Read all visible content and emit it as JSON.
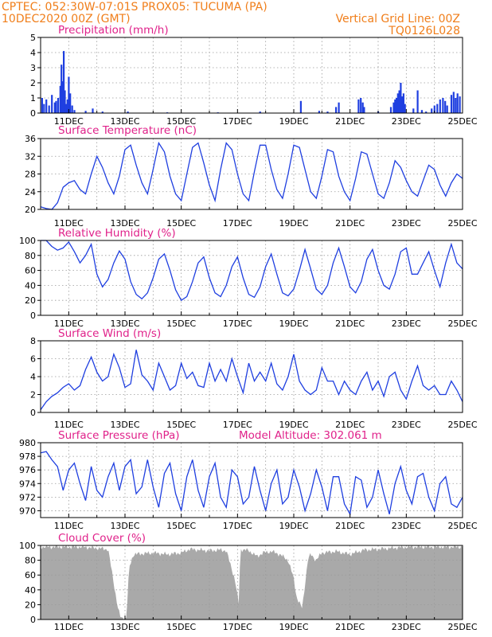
{
  "header": {
    "line1_left": "CPTEC:   052:30W-07:01S   PROX05: TUCUMA (PA)",
    "line2_left": "10DEC2020 00Z (GMT)",
    "line2_right": "Vertical Grid Line: 00Z",
    "line3_right": "TQ0126L028"
  },
  "colors": {
    "header": "#f07e1a",
    "title": "#e0218a",
    "series": "#1f3fe0",
    "cloud": "#a9a9a9",
    "grid": "#9a9a9a"
  },
  "x_ticks": [
    "11DEC",
    "13DEC",
    "15DEC",
    "17DEC",
    "19DEC",
    "21DEC",
    "23DEC",
    "25DEC"
  ],
  "chart_data": [
    {
      "id": "precip",
      "type": "bar",
      "title": "Precipitation (mm/h)",
      "ylim": [
        0,
        5
      ],
      "yticks": [
        0,
        1,
        2,
        3,
        4,
        5
      ],
      "x_day_start": 10,
      "x_day_end": 25,
      "grid": true,
      "values": [
        [
          10.05,
          1.0
        ],
        [
          10.12,
          0.6
        ],
        [
          10.2,
          0.9
        ],
        [
          10.3,
          0.5
        ],
        [
          10.4,
          1.2
        ],
        [
          10.5,
          0.7
        ],
        [
          10.55,
          0.8
        ],
        [
          10.62,
          1.0
        ],
        [
          10.7,
          1.8
        ],
        [
          10.74,
          3.2
        ],
        [
          10.78,
          2.1
        ],
        [
          10.82,
          4.1
        ],
        [
          10.86,
          1.5
        ],
        [
          10.9,
          0.6
        ],
        [
          10.95,
          0.9
        ],
        [
          11.0,
          2.4
        ],
        [
          11.05,
          1.3
        ],
        [
          11.12,
          0.5
        ],
        [
          11.2,
          0.2
        ],
        [
          11.6,
          0.15
        ],
        [
          11.85,
          0.3
        ],
        [
          12.2,
          0.1
        ],
        [
          13.1,
          0.1
        ],
        [
          14.5,
          0.05
        ],
        [
          16.3,
          0.05
        ],
        [
          17.8,
          0.1
        ],
        [
          19.25,
          0.8
        ],
        [
          19.9,
          0.15
        ],
        [
          20.2,
          0.1
        ],
        [
          20.5,
          0.4
        ],
        [
          20.6,
          0.7
        ],
        [
          21.3,
          0.9
        ],
        [
          21.38,
          1.0
        ],
        [
          21.45,
          0.7
        ],
        [
          21.5,
          0.4
        ],
        [
          22.0,
          0.1
        ],
        [
          22.45,
          0.4
        ],
        [
          22.55,
          0.7
        ],
        [
          22.6,
          0.9
        ],
        [
          22.65,
          1.0
        ],
        [
          22.7,
          1.3
        ],
        [
          22.75,
          1.5
        ],
        [
          22.8,
          2.0
        ],
        [
          22.85,
          1.1
        ],
        [
          22.9,
          1.3
        ],
        [
          22.95,
          0.6
        ],
        [
          23.25,
          0.3
        ],
        [
          23.4,
          1.5
        ],
        [
          23.55,
          0.2
        ],
        [
          23.7,
          0.1
        ],
        [
          23.9,
          0.3
        ],
        [
          24.0,
          0.5
        ],
        [
          24.1,
          0.6
        ],
        [
          24.2,
          0.9
        ],
        [
          24.3,
          1.0
        ],
        [
          24.38,
          0.8
        ],
        [
          24.45,
          0.5
        ],
        [
          24.6,
          1.2
        ],
        [
          24.68,
          1.4
        ],
        [
          24.75,
          1.0
        ],
        [
          24.82,
          1.3
        ],
        [
          24.9,
          1.1
        ]
      ]
    },
    {
      "id": "temp",
      "type": "line",
      "title": "Surface Temperature (nC)",
      "ylim": [
        20,
        36
      ],
      "yticks": [
        20,
        24,
        28,
        32,
        36
      ],
      "x_day_start": 10,
      "x_day_end": 25,
      "grid": true,
      "x": [
        10.0,
        10.2,
        10.4,
        10.6,
        10.8,
        11.0,
        11.2,
        11.4,
        11.6,
        11.8,
        12.0,
        12.2,
        12.4,
        12.6,
        12.8,
        13.0,
        13.2,
        13.4,
        13.6,
        13.8,
        14.0,
        14.2,
        14.4,
        14.6,
        14.8,
        15.0,
        15.2,
        15.4,
        15.6,
        15.8,
        16.0,
        16.2,
        16.4,
        16.6,
        16.8,
        17.0,
        17.2,
        17.4,
        17.6,
        17.8,
        18.0,
        18.2,
        18.4,
        18.6,
        18.8,
        19.0,
        19.2,
        19.4,
        19.6,
        19.8,
        20.0,
        20.2,
        20.4,
        20.6,
        20.8,
        21.0,
        21.2,
        21.4,
        21.6,
        21.8,
        22.0,
        22.2,
        22.4,
        22.6,
        22.8,
        23.0,
        23.2,
        23.4,
        23.6,
        23.8,
        24.0,
        24.2,
        24.4,
        24.6,
        24.8,
        25.0
      ],
      "values": [
        20.6,
        20.2,
        20.0,
        21.5,
        25.0,
        26.0,
        26.5,
        24.5,
        23.5,
        28.0,
        32.0,
        29.5,
        26.0,
        23.5,
        27.5,
        33.5,
        34.5,
        30.0,
        26.0,
        23.5,
        29.0,
        35.0,
        33.0,
        27.5,
        23.5,
        22.0,
        28.0,
        34.0,
        35.0,
        30.5,
        25.5,
        22.0,
        29.0,
        35.0,
        33.5,
        28.0,
        23.5,
        22.0,
        28.5,
        34.5,
        34.5,
        29.0,
        24.5,
        22.5,
        28.0,
        34.5,
        34.0,
        29.0,
        24.0,
        22.5,
        27.5,
        33.5,
        33.0,
        27.5,
        24.0,
        22.0,
        27.0,
        33.0,
        32.5,
        28.0,
        23.5,
        22.5,
        26.0,
        31.0,
        29.5,
        26.5,
        24.0,
        23.0,
        26.5,
        30.0,
        29.0,
        25.5,
        23.0,
        26.0,
        28.0,
        27.0
      ]
    },
    {
      "id": "rh",
      "type": "line",
      "title": "Relative Humidity (%)",
      "ylim": [
        0,
        100
      ],
      "yticks": [
        0,
        20,
        40,
        60,
        80,
        100
      ],
      "x_day_start": 10,
      "x_day_end": 25,
      "grid": true,
      "x": [
        10.0,
        10.2,
        10.4,
        10.6,
        10.8,
        11.0,
        11.2,
        11.4,
        11.6,
        11.8,
        12.0,
        12.2,
        12.4,
        12.6,
        12.8,
        13.0,
        13.2,
        13.4,
        13.6,
        13.8,
        14.0,
        14.2,
        14.4,
        14.6,
        14.8,
        15.0,
        15.2,
        15.4,
        15.6,
        15.8,
        16.0,
        16.2,
        16.4,
        16.6,
        16.8,
        17.0,
        17.2,
        17.4,
        17.6,
        17.8,
        18.0,
        18.2,
        18.4,
        18.6,
        18.8,
        19.0,
        19.2,
        19.4,
        19.6,
        19.8,
        20.0,
        20.2,
        20.4,
        20.6,
        20.8,
        21.0,
        21.2,
        21.4,
        21.6,
        21.8,
        22.0,
        22.2,
        22.4,
        22.6,
        22.8,
        23.0,
        23.2,
        23.4,
        23.6,
        23.8,
        24.0,
        24.2,
        24.4,
        24.6,
        24.8,
        25.0
      ],
      "values": [
        100,
        100,
        92,
        87,
        90,
        98,
        85,
        70,
        80,
        95,
        55,
        38,
        48,
        70,
        86,
        75,
        45,
        28,
        22,
        30,
        50,
        75,
        82,
        60,
        34,
        20,
        25,
        45,
        70,
        78,
        50,
        30,
        25,
        40,
        65,
        78,
        50,
        28,
        24,
        38,
        65,
        82,
        55,
        30,
        26,
        35,
        60,
        88,
        62,
        35,
        28,
        40,
        70,
        90,
        65,
        38,
        30,
        45,
        75,
        88,
        60,
        40,
        35,
        55,
        85,
        90,
        55,
        55,
        70,
        85,
        60,
        38,
        70,
        95,
        70,
        62
      ]
    },
    {
      "id": "wind",
      "type": "line",
      "title": "Surface Wind (m/s)",
      "ylim": [
        0,
        8
      ],
      "yticks": [
        0,
        2,
        4,
        6,
        8
      ],
      "x_day_start": 10,
      "x_day_end": 25,
      "grid": true,
      "x": [
        10.0,
        10.2,
        10.4,
        10.6,
        10.8,
        11.0,
        11.2,
        11.4,
        11.6,
        11.8,
        12.0,
        12.2,
        12.4,
        12.6,
        12.8,
        13.0,
        13.2,
        13.4,
        13.6,
        13.8,
        14.0,
        14.2,
        14.4,
        14.6,
        14.8,
        15.0,
        15.2,
        15.4,
        15.6,
        15.8,
        16.0,
        16.2,
        16.4,
        16.6,
        16.8,
        17.0,
        17.2,
        17.4,
        17.6,
        17.8,
        18.0,
        18.2,
        18.4,
        18.6,
        18.8,
        19.0,
        19.2,
        19.4,
        19.6,
        19.8,
        20.0,
        20.2,
        20.4,
        20.6,
        20.8,
        21.0,
        21.2,
        21.4,
        21.6,
        21.8,
        22.0,
        22.2,
        22.4,
        22.6,
        22.8,
        23.0,
        23.2,
        23.4,
        23.6,
        23.8,
        24.0,
        24.2,
        24.4,
        24.6,
        24.8,
        25.0
      ],
      "values": [
        0.3,
        1.2,
        1.8,
        2.2,
        2.8,
        3.2,
        2.5,
        3.0,
        4.8,
        6.2,
        4.5,
        3.5,
        4.0,
        6.5,
        5.0,
        2.8,
        3.2,
        7.0,
        4.2,
        3.5,
        2.5,
        5.5,
        4.0,
        2.5,
        3.0,
        5.5,
        3.8,
        4.5,
        3.0,
        2.8,
        5.5,
        3.5,
        4.8,
        3.5,
        6.0,
        4.0,
        2.2,
        5.5,
        3.5,
        4.5,
        3.5,
        5.5,
        3.2,
        2.5,
        4.0,
        6.5,
        3.5,
        2.5,
        2.0,
        2.5,
        5.0,
        3.5,
        3.5,
        2.0,
        3.5,
        2.5,
        2.0,
        3.5,
        4.5,
        2.5,
        3.5,
        1.8,
        4.0,
        4.5,
        2.5,
        1.5,
        3.5,
        5.2,
        3.0,
        2.5,
        3.0,
        2.0,
        2.0,
        3.5,
        2.5,
        1.2
      ]
    },
    {
      "id": "pres",
      "type": "line",
      "title": "Surface Pressure (hPa)",
      "annotation": "Model Altitude: 302.061 m",
      "ylim": [
        969,
        980
      ],
      "yticks": [
        970,
        972,
        974,
        976,
        978,
        980
      ],
      "x_day_start": 10,
      "x_day_end": 25,
      "grid": true,
      "x": [
        10.0,
        10.2,
        10.4,
        10.6,
        10.8,
        11.0,
        11.2,
        11.4,
        11.6,
        11.8,
        12.0,
        12.2,
        12.4,
        12.6,
        12.8,
        13.0,
        13.2,
        13.4,
        13.6,
        13.8,
        14.0,
        14.2,
        14.4,
        14.6,
        14.8,
        15.0,
        15.2,
        15.4,
        15.6,
        15.8,
        16.0,
        16.2,
        16.4,
        16.6,
        16.8,
        17.0,
        17.2,
        17.4,
        17.6,
        17.8,
        18.0,
        18.2,
        18.4,
        18.6,
        18.8,
        19.0,
        19.2,
        19.4,
        19.6,
        19.8,
        20.0,
        20.2,
        20.4,
        20.6,
        20.8,
        21.0,
        21.2,
        21.4,
        21.6,
        21.8,
        22.0,
        22.2,
        22.4,
        22.6,
        22.8,
        23.0,
        23.2,
        23.4,
        23.6,
        23.8,
        24.0,
        24.2,
        24.4,
        24.6,
        24.8,
        25.0
      ],
      "values": [
        978.5,
        978.7,
        977.5,
        976.5,
        973.0,
        976.0,
        977.0,
        974.0,
        971.5,
        976.5,
        973.0,
        972.0,
        975.0,
        977.0,
        973.0,
        976.5,
        977.5,
        972.5,
        973.5,
        977.5,
        973.5,
        970.5,
        975.5,
        977.0,
        972.5,
        970.0,
        975.0,
        977.5,
        973.0,
        970.5,
        975.0,
        977.0,
        972.0,
        970.5,
        976.0,
        975.0,
        971.0,
        972.0,
        976.5,
        973.0,
        970.0,
        974.0,
        976.0,
        971.0,
        972.0,
        976.0,
        973.5,
        970.0,
        972.5,
        976.0,
        973.5,
        970.0,
        975.0,
        975.0,
        971.0,
        969.5,
        975.0,
        974.5,
        970.5,
        972.0,
        976.0,
        972.5,
        969.5,
        974.0,
        976.5,
        973.0,
        971.0,
        975.0,
        975.5,
        972.0,
        970.0,
        974.0,
        975.0,
        971.0,
        970.5,
        972.0
      ]
    },
    {
      "id": "cloud",
      "type": "bar",
      "title": "Cloud Cover (%)",
      "ylim": [
        0,
        100
      ],
      "yticks": [
        0,
        20,
        40,
        60,
        80,
        100
      ],
      "x_day_start": 10,
      "x_day_end": 25,
      "grid": true,
      "anchors": [
        [
          10.0,
          98
        ],
        [
          11.5,
          98
        ],
        [
          12.4,
          95
        ],
        [
          12.75,
          15
        ],
        [
          12.85,
          2
        ],
        [
          13.05,
          2
        ],
        [
          13.15,
          70
        ],
        [
          13.3,
          88
        ],
        [
          14.0,
          90
        ],
        [
          14.5,
          88
        ],
        [
          15.0,
          90
        ],
        [
          15.3,
          95
        ],
        [
          15.6,
          94
        ],
        [
          16.0,
          93
        ],
        [
          16.4,
          94
        ],
        [
          16.6,
          93
        ],
        [
          16.9,
          55
        ],
        [
          17.05,
          20
        ],
        [
          17.1,
          95
        ],
        [
          17.4,
          93
        ],
        [
          17.7,
          85
        ],
        [
          17.9,
          90
        ],
        [
          18.2,
          92
        ],
        [
          18.5,
          88
        ],
        [
          18.8,
          80
        ],
        [
          19.0,
          55
        ],
        [
          19.1,
          30
        ],
        [
          19.3,
          15
        ],
        [
          19.5,
          80
        ],
        [
          19.6,
          88
        ],
        [
          19.8,
          80
        ],
        [
          20.0,
          90
        ],
        [
          20.5,
          92
        ],
        [
          21.0,
          88
        ],
        [
          21.5,
          94
        ],
        [
          22.0,
          95
        ],
        [
          23.0,
          98
        ],
        [
          24.0,
          98
        ],
        [
          25.0,
          98
        ]
      ]
    }
  ]
}
